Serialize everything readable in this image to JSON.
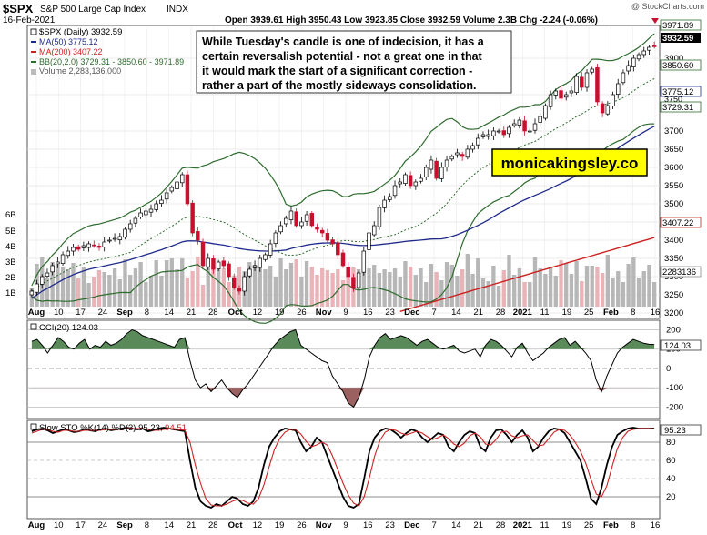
{
  "header": {
    "symbol": "$SPX",
    "name": "S&P 500 Large Cap Index",
    "exchange": "INDX",
    "date": "16-Feb-2021",
    "ohlc_text": "Open 3939.61  High 3950.43  Low 3923.85  Close 3932.59  Volume 2.3B  Chg -2.24 (-0.06%)",
    "watermark": "@ StockCharts.com"
  },
  "legend": {
    "main": "$SPX (Daily) 3932.59",
    "ma50": "MA(50) 3775.12",
    "ma200": "MA(200) 3407.22",
    "bb": "BB(20,2.0) 3729.31 - 3850.60 - 3971.89",
    "volume": "Volume 2,283,136,000"
  },
  "annotation": {
    "commentary": [
      "While Tuesday's candle is one of indecision, it has a",
      "certain reversalish potential - not a great one in that",
      "it would mark the start of a significant correction -",
      "rather a part of the mostly sideways consolidation."
    ],
    "brand": "monicakingsley.co"
  },
  "price_labels": {
    "boxes": [
      "3971.89",
      "3932.59",
      "3850.60",
      "3775.12",
      "3729.31",
      "3407.22"
    ],
    "extra": [
      "3750"
    ],
    "ticks": [
      "3900",
      "3800",
      "3700",
      "3650",
      "3600",
      "3550",
      "3500",
      "3450",
      "3400",
      "3350",
      "3300",
      "3250",
      "3200"
    ],
    "volume_box": "2283136",
    "volume_ticks": [
      "6B",
      "5B",
      "4B",
      "3B",
      "2B",
      "1B"
    ]
  },
  "cci": {
    "legend": "CCI(20) 124.03",
    "ticks": [
      "200",
      "100",
      "0",
      "-100",
      "-200"
    ],
    "last": "124.03"
  },
  "sto": {
    "legend_prefix": "Slow STO %K(14) %D(3) ",
    "k_value": "95.23",
    "d_value": "94.51",
    "ticks": [
      "80",
      "60",
      "40",
      "20"
    ],
    "last": "95.23"
  },
  "x_axis": {
    "labels": [
      "Aug",
      "10",
      "17",
      "24",
      "Sep",
      "8",
      "14",
      "21",
      "28",
      "Oct",
      "12",
      "19",
      "26",
      "Nov",
      "9",
      "16",
      "23",
      "Dec",
      "7",
      "14",
      "21",
      "28",
      "2021",
      "11",
      "19",
      "25",
      "Feb",
      "8",
      "16"
    ]
  },
  "colors": {
    "up": "#ffffff",
    "down": "#c8102e",
    "ma50": "#1f2b8c",
    "ma200": "#cc2222",
    "bb": "#2e6b2e",
    "vol_up": "#b7b7b7",
    "vol_down": "#e8b4b8",
    "cci_fill": "#5a8a5a",
    "cci_neg_fill": "#9b6060",
    "sto_k": "#000000",
    "sto_d": "#cc2222",
    "brand_bg": "#ffff00"
  },
  "chart_data": [
    {
      "type": "candlestick",
      "title": "$SPX S&P 500 Large Cap Index INDX",
      "y_range": [
        3190,
        3985
      ],
      "bollinger": {
        "upper": 3971.89,
        "middle": 3850.6,
        "lower": 3729.31
      },
      "ma50_last": 3775.12,
      "ma200_last": 3407.22,
      "last": {
        "open": 3939.61,
        "high": 3950.43,
        "low": 3923.85,
        "close": 3932.59,
        "volume": "2.3B",
        "change": -2.24,
        "change_pct": -0.06
      },
      "close_path": [
        3260,
        3280,
        3300,
        3310,
        3330,
        3340,
        3360,
        3370,
        3380,
        3375,
        3385,
        3390,
        3385,
        3380,
        3395,
        3400,
        3405,
        3410,
        3430,
        3445,
        3460,
        3475,
        3480,
        3485,
        3500,
        3510,
        3530,
        3545,
        3560,
        3580,
        3500,
        3420,
        3400,
        3330,
        3350,
        3320,
        3340,
        3330,
        3300,
        3270,
        3260,
        3300,
        3320,
        3330,
        3350,
        3360,
        3390,
        3420,
        3440,
        3460,
        3480,
        3440,
        3450,
        3470,
        3440,
        3430,
        3420,
        3400,
        3390,
        3360,
        3330,
        3300,
        3270,
        3310,
        3370,
        3420,
        3440,
        3490,
        3510,
        3520,
        3550,
        3560,
        3580,
        3550,
        3560,
        3570,
        3600,
        3620,
        3570,
        3600,
        3620,
        3630,
        3640,
        3630,
        3650,
        3660,
        3680,
        3690,
        3690,
        3700,
        3700,
        3690,
        3710,
        3720,
        3730,
        3700,
        3700,
        3720,
        3740,
        3770,
        3800,
        3810,
        3790,
        3800,
        3810,
        3850,
        3820,
        3860,
        3870,
        3780,
        3750,
        3770,
        3800,
        3830,
        3860,
        3880,
        3900,
        3910,
        3920,
        3930,
        3933
      ]
    },
    {
      "type": "line",
      "title": "CCI(20) 124.03",
      "ylim": [
        -250,
        240
      ],
      "values": [
        140,
        150,
        120,
        80,
        120,
        160,
        140,
        110,
        100,
        130,
        150,
        100,
        120,
        110,
        140,
        120,
        130,
        150,
        180,
        200,
        190,
        170,
        160,
        150,
        140,
        130,
        120,
        110,
        150,
        160,
        40,
        -60,
        -100,
        -80,
        -120,
        -90,
        -60,
        -100,
        -130,
        -150,
        -110,
        -80,
        -40,
        0,
        40,
        80,
        120,
        150,
        170,
        190,
        200,
        120,
        100,
        80,
        60,
        40,
        30,
        -40,
        -80,
        -120,
        -180,
        -200,
        -150,
        -60,
        60,
        120,
        160,
        180,
        150,
        160,
        170,
        160,
        140,
        120,
        140,
        150,
        130,
        110,
        100,
        110,
        120,
        90,
        80,
        90,
        100,
        60,
        120,
        150,
        140,
        120,
        90,
        60,
        110,
        130,
        80,
        40,
        60,
        80,
        110,
        130,
        150,
        160,
        120,
        140,
        110,
        80,
        40,
        -60,
        -120,
        -40,
        20,
        80,
        110,
        130,
        150,
        140,
        130,
        125,
        124
      ]
    },
    {
      "type": "line",
      "title": "Slow STO %K(14) %D(3) 95.23, 94.51",
      "ylim": [
        0,
        100
      ],
      "series": [
        {
          "name": "%K",
          "values": [
            92,
            94,
            95,
            93,
            90,
            92,
            94,
            93,
            91,
            92,
            94,
            93,
            92,
            94,
            95,
            93,
            94,
            95,
            96,
            95,
            94,
            95,
            92,
            93,
            95,
            96,
            95,
            94,
            93,
            92,
            60,
            30,
            15,
            10,
            8,
            12,
            10,
            15,
            20,
            18,
            12,
            10,
            15,
            30,
            55,
            75,
            85,
            92,
            95,
            94,
            93,
            80,
            70,
            75,
            85,
            80,
            65,
            50,
            35,
            20,
            10,
            8,
            12,
            40,
            70,
            85,
            92,
            95,
            94,
            90,
            85,
            90,
            94,
            92,
            85,
            80,
            85,
            90,
            88,
            75,
            70,
            80,
            88,
            92,
            90,
            75,
            70,
            85,
            93,
            94,
            88,
            80,
            88,
            93,
            85,
            70,
            75,
            85,
            92,
            95,
            94,
            90,
            80,
            70,
            60,
            40,
            18,
            12,
            30,
            55,
            75,
            88,
            92,
            95,
            96,
            95,
            95,
            95,
            95
          ]
        },
        {
          "name": "%D",
          "values": [
            90,
            92,
            94,
            94,
            92,
            91,
            93,
            93,
            92,
            92,
            93,
            93,
            93,
            93,
            94,
            94,
            94,
            94,
            95,
            95,
            95,
            95,
            94,
            93,
            93,
            94,
            95,
            95,
            94,
            93,
            80,
            55,
            35,
            18,
            11,
            10,
            10,
            12,
            15,
            17,
            16,
            13,
            12,
            18,
            33,
            53,
            72,
            84,
            91,
            94,
            94,
            89,
            81,
            75,
            77,
            80,
            77,
            65,
            50,
            35,
            22,
            13,
            10,
            20,
            41,
            65,
            82,
            91,
            94,
            93,
            90,
            88,
            90,
            92,
            90,
            86,
            83,
            85,
            88,
            84,
            78,
            75,
            79,
            87,
            90,
            86,
            78,
            77,
            83,
            91,
            92,
            87,
            85,
            87,
            88,
            82,
            76,
            77,
            84,
            91,
            94,
            93,
            88,
            80,
            70,
            57,
            39,
            23,
            20,
            32,
            53,
            73,
            85,
            92,
            94,
            95,
            95,
            95,
            94.5
          ]
        }
      ]
    }
  ]
}
